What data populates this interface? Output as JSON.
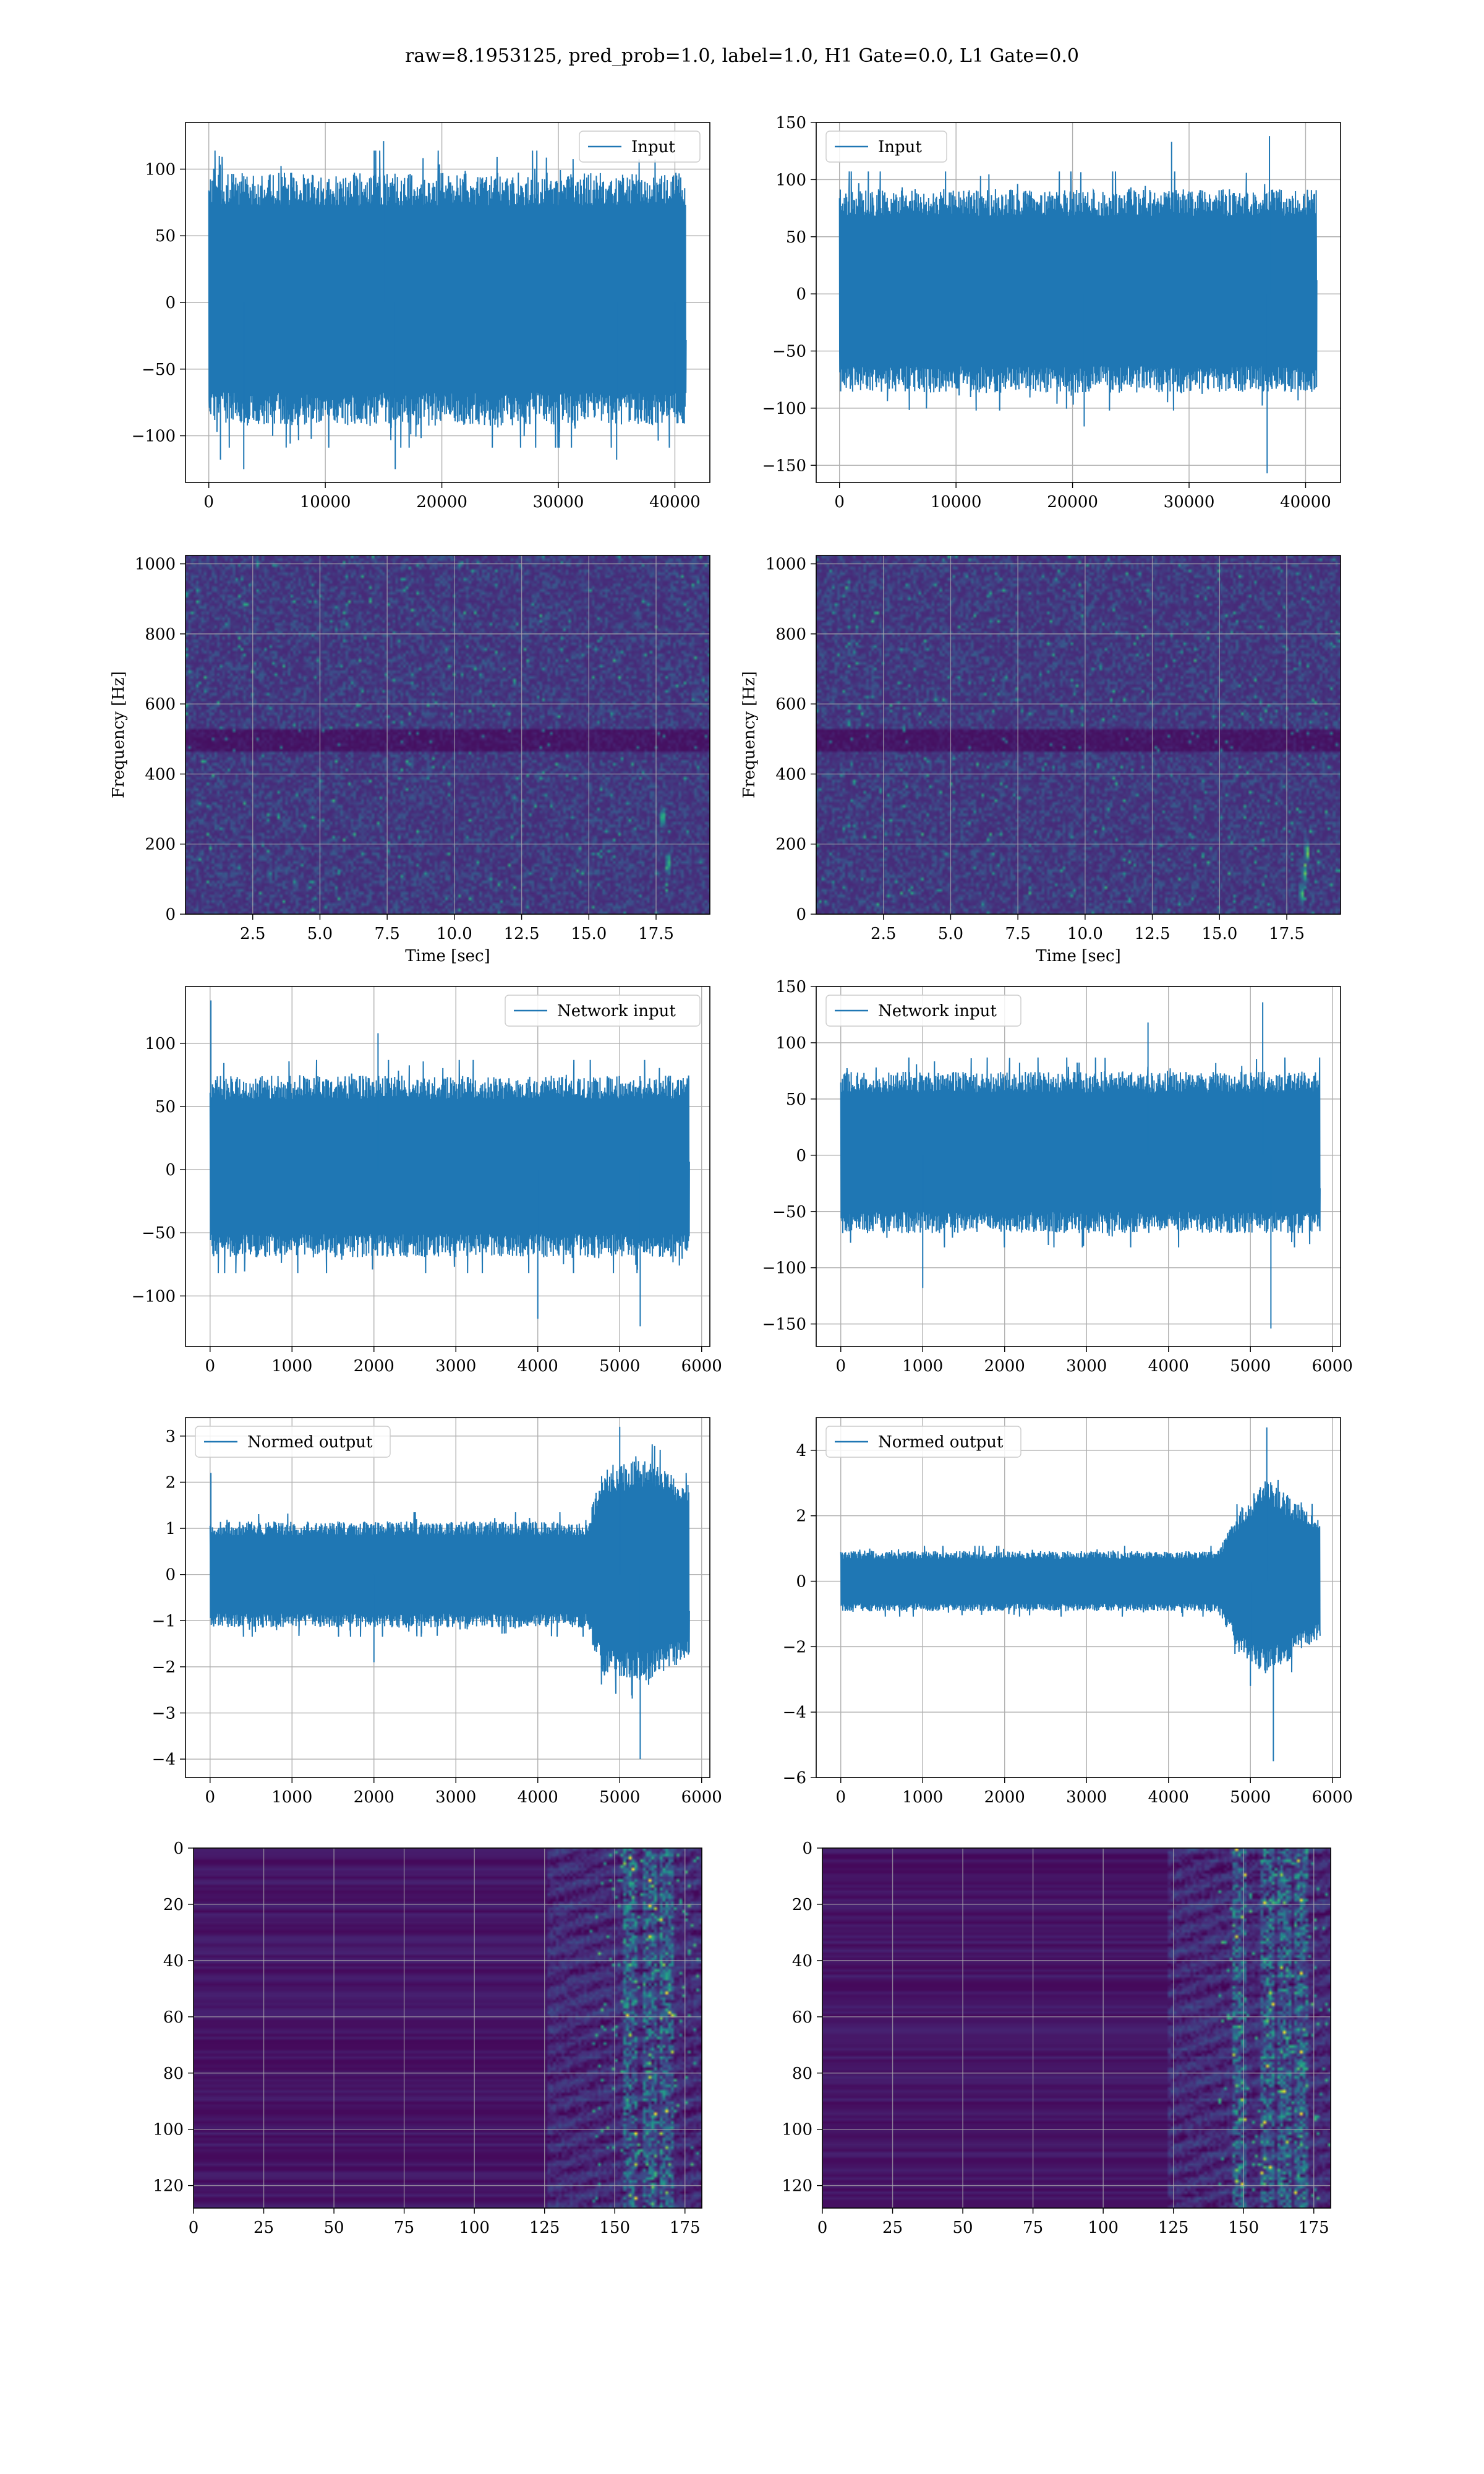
{
  "figure": {
    "suptitle": "raw=8.1953125, pred_prob=1.0, label=1.0, H1 Gate=0.0, L1 Gate=0.0"
  },
  "colors": {
    "line": "#1f77b4",
    "grid": "#b0b0b0",
    "viridis_low": "#440154",
    "viridis_mid": "#21918c",
    "viridis_high": "#fde725"
  },
  "chart_data": [
    {
      "id": "input-h1",
      "type": "line",
      "legend": "Input",
      "legend_loc": "upper right",
      "xlim": [
        -2000,
        43000
      ],
      "ylim": [
        -135,
        135
      ],
      "xticks": [
        0,
        10000,
        20000,
        30000,
        40000
      ],
      "xtick_labels": [
        "0",
        "10000",
        "20000",
        "30000",
        "40000"
      ],
      "yticks": [
        -100,
        -50,
        0,
        50,
        100
      ],
      "ytick_labels": [
        "−100",
        "−50",
        "0",
        "50",
        "100"
      ],
      "grid": true,
      "xlabel": "",
      "ylabel": "",
      "x_range": [
        0,
        40960
      ],
      "envelope": [
        {
          "x": 0,
          "lo": -80,
          "hi": 85
        },
        {
          "x": 40960,
          "lo": -80,
          "hi": 85
        }
      ],
      "extremes": [
        {
          "x": 1000,
          "y": -118
        },
        {
          "x": 3000,
          "y": -125
        },
        {
          "x": 15000,
          "y": 121
        },
        {
          "x": 16000,
          "y": -125
        },
        {
          "x": 35000,
          "y": -118
        },
        {
          "x": 40000,
          "y": -86
        }
      ]
    },
    {
      "id": "input-l1",
      "type": "line",
      "legend": "Input",
      "legend_loc": "upper left",
      "xlim": [
        -2000,
        43000
      ],
      "ylim": [
        -165,
        150
      ],
      "xticks": [
        0,
        10000,
        20000,
        30000,
        40000
      ],
      "xtick_labels": [
        "0",
        "10000",
        "20000",
        "30000",
        "40000"
      ],
      "yticks": [
        -150,
        -100,
        -50,
        0,
        50,
        100,
        150
      ],
      "ytick_labels": [
        "−150",
        "−100",
        "−50",
        "0",
        "50",
        "100",
        "150"
      ],
      "grid": true,
      "xlabel": "",
      "ylabel": "",
      "x_range": [
        0,
        40960
      ],
      "envelope": [
        {
          "x": 0,
          "lo": -75,
          "hi": 80
        },
        {
          "x": 40960,
          "lo": -75,
          "hi": 80
        }
      ],
      "extremes": [
        {
          "x": 28500,
          "y": 133
        },
        {
          "x": 36900,
          "y": 138
        },
        {
          "x": 36700,
          "y": -157
        },
        {
          "x": 21000,
          "y": -116
        }
      ]
    },
    {
      "id": "spec-h1",
      "type": "heatmap",
      "xlim": [
        0,
        19.5
      ],
      "ylim": [
        0,
        1024
      ],
      "xticks": [
        2.5,
        5.0,
        7.5,
        10.0,
        12.5,
        15.0,
        17.5
      ],
      "xtick_labels": [
        "2.5",
        "5.0",
        "7.5",
        "10.0",
        "12.5",
        "15.0",
        "17.5"
      ],
      "yticks": [
        0,
        200,
        400,
        600,
        800,
        1000
      ],
      "ytick_labels": [
        "0",
        "200",
        "400",
        "600",
        "800",
        "1000"
      ],
      "xlabel": "Time [sec]",
      "ylabel": "Frequency [Hz]",
      "grid": true,
      "colormap": "viridis",
      "dark_band_hz": [
        470,
        530
      ],
      "bright_blobs": [
        {
          "t": 17.7,
          "f": 280
        },
        {
          "t": 17.9,
          "f": 150
        }
      ]
    },
    {
      "id": "spec-l1",
      "type": "heatmap",
      "xlim": [
        0,
        19.5
      ],
      "ylim": [
        0,
        1024
      ],
      "xticks": [
        2.5,
        5.0,
        7.5,
        10.0,
        12.5,
        15.0,
        17.5
      ],
      "xtick_labels": [
        "2.5",
        "5.0",
        "7.5",
        "10.0",
        "12.5",
        "15.0",
        "17.5"
      ],
      "yticks": [
        0,
        200,
        400,
        600,
        800,
        1000
      ],
      "ytick_labels": [
        "0",
        "200",
        "400",
        "600",
        "800",
        "1000"
      ],
      "xlabel": "Time [sec]",
      "ylabel": "Frequency [Hz]",
      "grid": true,
      "colormap": "viridis",
      "dark_band_hz": [
        470,
        530
      ],
      "bright_blobs": [
        {
          "t": 18.1,
          "f": 120
        },
        {
          "t": 18.2,
          "f": 180
        },
        {
          "t": 18.0,
          "f": 60
        }
      ]
    },
    {
      "id": "net-h1",
      "type": "line",
      "legend": "Network input",
      "legend_loc": "upper right",
      "xlim": [
        -300,
        6100
      ],
      "ylim": [
        -140,
        145
      ],
      "xticks": [
        0,
        1000,
        2000,
        3000,
        4000,
        5000,
        6000
      ],
      "xtick_labels": [
        "0",
        "1000",
        "2000",
        "3000",
        "4000",
        "5000",
        "6000"
      ],
      "yticks": [
        -100,
        -50,
        0,
        50,
        100
      ],
      "ytick_labels": [
        "−100",
        "−50",
        "0",
        "50",
        "100"
      ],
      "grid": true,
      "xlabel": "",
      "ylabel": "",
      "x_range": [
        0,
        5850
      ],
      "envelope": [
        {
          "x": 0,
          "lo": -60,
          "hi": 65
        },
        {
          "x": 5850,
          "lo": -60,
          "hi": 65
        }
      ],
      "extremes": [
        {
          "x": 10,
          "y": 134
        },
        {
          "x": 5250,
          "y": -124
        },
        {
          "x": 4000,
          "y": -118
        },
        {
          "x": 2050,
          "y": 108
        }
      ]
    },
    {
      "id": "net-l1",
      "type": "line",
      "legend": "Network input",
      "legend_loc": "upper left",
      "xlim": [
        -300,
        6100
      ],
      "ylim": [
        -170,
        150
      ],
      "xticks": [
        0,
        1000,
        2000,
        3000,
        4000,
        5000,
        6000
      ],
      "xtick_labels": [
        "0",
        "1000",
        "2000",
        "3000",
        "4000",
        "5000",
        "6000"
      ],
      "yticks": [
        -150,
        -100,
        -50,
        0,
        50,
        100,
        150
      ],
      "ytick_labels": [
        "−150",
        "−100",
        "−50",
        "0",
        "50",
        "100",
        "150"
      ],
      "grid": true,
      "xlabel": "",
      "ylabel": "",
      "x_range": [
        0,
        5850
      ],
      "envelope": [
        {
          "x": 0,
          "lo": -60,
          "hi": 65
        },
        {
          "x": 5850,
          "lo": -60,
          "hi": 65
        }
      ],
      "extremes": [
        {
          "x": 5150,
          "y": 136
        },
        {
          "x": 5250,
          "y": -154
        },
        {
          "x": 1000,
          "y": -118
        },
        {
          "x": 3750,
          "y": 118
        }
      ]
    },
    {
      "id": "norm-h1",
      "type": "line",
      "legend": "Normed output",
      "legend_loc": "upper left",
      "xlim": [
        -300,
        6100
      ],
      "ylim": [
        -4.4,
        3.4
      ],
      "xticks": [
        0,
        1000,
        2000,
        3000,
        4000,
        5000,
        6000
      ],
      "xtick_labels": [
        "0",
        "1000",
        "2000",
        "3000",
        "4000",
        "5000",
        "6000"
      ],
      "yticks": [
        -4,
        -3,
        -2,
        -1,
        0,
        1,
        2,
        3
      ],
      "ytick_labels": [
        "−4",
        "−3",
        "−2",
        "−1",
        "0",
        "1",
        "2",
        "3"
      ],
      "grid": true,
      "xlabel": "",
      "ylabel": "",
      "x_range": [
        0,
        5850
      ],
      "envelope": [
        {
          "x": 0,
          "lo": -1.0,
          "hi": 1.0
        },
        {
          "x": 4600,
          "lo": -1.0,
          "hi": 1.0
        },
        {
          "x": 4800,
          "lo": -1.9,
          "hi": 2.0
        },
        {
          "x": 5300,
          "lo": -2.0,
          "hi": 2.2
        },
        {
          "x": 5850,
          "lo": -1.6,
          "hi": 1.7
        }
      ],
      "extremes": [
        {
          "x": 5000,
          "y": 3.2
        },
        {
          "x": 5250,
          "y": -4.0
        },
        {
          "x": 10,
          "y": 2.2
        },
        {
          "x": 2000,
          "y": -1.9
        }
      ]
    },
    {
      "id": "norm-l1",
      "type": "line",
      "legend": "Normed output",
      "legend_loc": "upper left",
      "xlim": [
        -300,
        6100
      ],
      "ylim": [
        -6.0,
        5.0
      ],
      "xticks": [
        0,
        1000,
        2000,
        3000,
        4000,
        5000,
        6000
      ],
      "xtick_labels": [
        "0",
        "1000",
        "2000",
        "3000",
        "4000",
        "5000",
        "6000"
      ],
      "yticks": [
        -6,
        -4,
        -2,
        0,
        2,
        4
      ],
      "ytick_labels": [
        "−6",
        "−4",
        "−2",
        "0",
        "2",
        "4"
      ],
      "grid": true,
      "xlabel": "",
      "ylabel": "",
      "x_range": [
        0,
        5850
      ],
      "envelope": [
        {
          "x": 0,
          "lo": -0.8,
          "hi": 0.8
        },
        {
          "x": 4600,
          "lo": -0.8,
          "hi": 0.8
        },
        {
          "x": 4900,
          "lo": -2.0,
          "hi": 2.0
        },
        {
          "x": 5200,
          "lo": -2.5,
          "hi": 2.8
        },
        {
          "x": 5850,
          "lo": -1.5,
          "hi": 1.6
        }
      ],
      "extremes": [
        {
          "x": 5200,
          "y": 4.7
        },
        {
          "x": 5280,
          "y": -5.5
        },
        {
          "x": 5000,
          "y": -3.2
        }
      ]
    },
    {
      "id": "act-h1",
      "type": "heatmap",
      "xlim": [
        0,
        181
      ],
      "ylim": [
        128,
        0
      ],
      "xticks": [
        0,
        25,
        50,
        75,
        100,
        125,
        150,
        175
      ],
      "xtick_labels": [
        "0",
        "25",
        "50",
        "75",
        "100",
        "125",
        "150",
        "175"
      ],
      "yticks": [
        0,
        20,
        40,
        60,
        80,
        100,
        120
      ],
      "ytick_labels": [
        "0",
        "20",
        "40",
        "60",
        "80",
        "100",
        "120"
      ],
      "grid": true,
      "xlabel": "",
      "ylabel": "",
      "colormap": "viridis",
      "active_from": 125,
      "hot_columns": [
        155,
        162,
        168
      ]
    },
    {
      "id": "act-l1",
      "type": "heatmap",
      "xlim": [
        0,
        181
      ],
      "ylim": [
        128,
        0
      ],
      "xticks": [
        0,
        25,
        50,
        75,
        100,
        125,
        150,
        175
      ],
      "xtick_labels": [
        "0",
        "25",
        "50",
        "75",
        "100",
        "125",
        "150",
        "175"
      ],
      "yticks": [
        0,
        20,
        40,
        60,
        80,
        100,
        120
      ],
      "ytick_labels": [
        "0",
        "20",
        "40",
        "60",
        "80",
        "100",
        "120"
      ],
      "grid": true,
      "xlabel": "",
      "ylabel": "",
      "colormap": "viridis",
      "active_from": 122,
      "hot_columns": [
        148,
        158,
        164,
        170
      ]
    }
  ]
}
